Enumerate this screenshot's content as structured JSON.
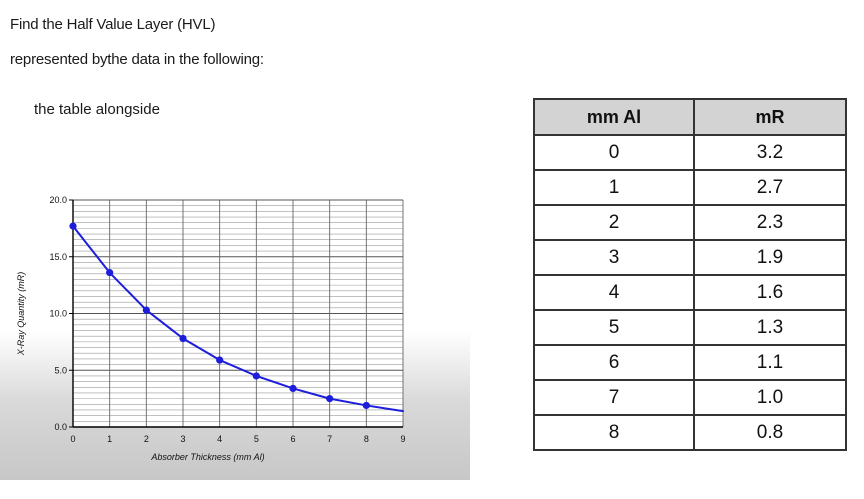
{
  "question": {
    "line1": "Find the Half Value Layer (HVL)",
    "line2": "represented bythe data in the following:",
    "line3": "the table alongside"
  },
  "table": {
    "headers": [
      "mm Al",
      "mR"
    ],
    "rows": [
      [
        "0",
        "3.2"
      ],
      [
        "1",
        "2.7"
      ],
      [
        "2",
        "2.3"
      ],
      [
        "3",
        "1.9"
      ],
      [
        "4",
        "1.6"
      ],
      [
        "5",
        "1.3"
      ],
      [
        "6",
        "1.1"
      ],
      [
        "7",
        "1.0"
      ],
      [
        "8",
        "0.8"
      ]
    ]
  },
  "chart_data": {
    "type": "line",
    "title": "",
    "xlabel": "Absorber Thickness (mm Al)",
    "ylabel": "X-Ray Quantity (mR)",
    "xlim": [
      0,
      9
    ],
    "ylim": [
      0,
      20
    ],
    "x_ticks": [
      "0",
      "1",
      "2",
      "3",
      "4",
      "5",
      "6",
      "7",
      "8",
      "9"
    ],
    "y_ticks": [
      "0.0",
      "5.0",
      "10.0",
      "15.0",
      "20.0"
    ],
    "grid": true,
    "series": [
      {
        "x": [
          0,
          1,
          2,
          3,
          4,
          5,
          6,
          7,
          8,
          9
        ],
        "y": [
          17.7,
          13.6,
          10.3,
          7.8,
          5.9,
          4.5,
          3.4,
          2.5,
          1.9,
          1.4
        ],
        "markers_at": [
          0,
          1,
          2,
          3,
          4,
          5,
          6,
          7,
          8
        ],
        "color": "#1d1ddc"
      }
    ]
  }
}
